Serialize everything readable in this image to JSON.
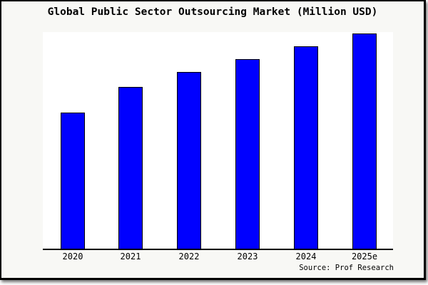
{
  "title": "Global Public Sector Outsourcing Market (Million USD)",
  "source_label": "Source: Prof Research",
  "colors": {
    "bar_fill": "#0000ff",
    "bar_border": "#000000",
    "frame_background": "#f8f8f5",
    "plot_background": "#ffffff",
    "axis_line": "#000000",
    "text": "#000000"
  },
  "chart_data": {
    "type": "bar",
    "title": "Global Public Sector Outsourcing Market (Million USD)",
    "categories": [
      "2020",
      "2021",
      "2022",
      "2023",
      "2024",
      "2025e"
    ],
    "values": [
      63,
      75,
      82,
      88,
      94,
      100
    ],
    "value_scale": "relative heights; no y-axis or value labels shown, normalized to 2025e = 100",
    "xlabel": "",
    "ylabel": "",
    "legend": "none",
    "grid": false,
    "y_axis_visible": false,
    "source": "Source: Prof Research"
  }
}
